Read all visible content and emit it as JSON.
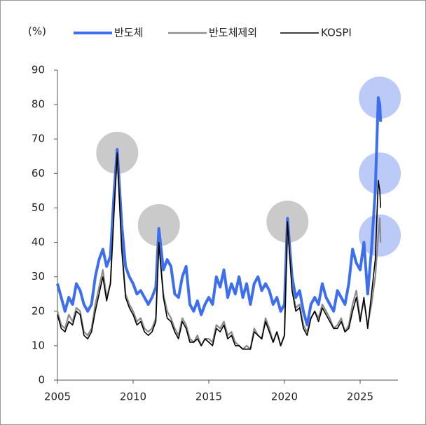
{
  "chart_data": {
    "type": "line",
    "y_unit_label": "(%)",
    "xlim": [
      2005,
      2027.5
    ],
    "xticks": [
      2005,
      2010,
      2015,
      2020,
      2025
    ],
    "ylim": [
      0,
      90
    ],
    "yticks": [
      0,
      10,
      20,
      30,
      40,
      50,
      60,
      70,
      80,
      90
    ],
    "legend": "top",
    "x": [
      2005.0,
      2005.25,
      2005.5,
      2005.75,
      2006.0,
      2006.25,
      2006.5,
      2006.75,
      2007.0,
      2007.25,
      2007.5,
      2007.75,
      2008.0,
      2008.25,
      2008.5,
      2008.75,
      2008.95,
      2009.25,
      2009.5,
      2009.75,
      2010.0,
      2010.25,
      2010.5,
      2010.75,
      2011.0,
      2011.25,
      2011.5,
      2011.7,
      2012.0,
      2012.25,
      2012.5,
      2012.75,
      2013.0,
      2013.25,
      2013.5,
      2013.75,
      2014.0,
      2014.25,
      2014.5,
      2014.75,
      2015.0,
      2015.25,
      2015.5,
      2015.75,
      2016.0,
      2016.25,
      2016.5,
      2016.75,
      2017.0,
      2017.25,
      2017.5,
      2017.75,
      2018.0,
      2018.25,
      2018.5,
      2018.75,
      2019.0,
      2019.25,
      2019.5,
      2019.75,
      2020.0,
      2020.2,
      2020.5,
      2020.75,
      2021.0,
      2021.25,
      2021.5,
      2021.75,
      2022.0,
      2022.25,
      2022.5,
      2022.75,
      2023.0,
      2023.25,
      2023.5,
      2023.75,
      2024.0,
      2024.25,
      2024.5,
      2024.75,
      2025.0,
      2025.25,
      2025.5,
      2025.75,
      2026.0,
      2026.2,
      2026.3,
      2026.35
    ],
    "series": [
      {
        "name": "반도체",
        "color": "#3d6ef0",
        "width": 4,
        "values": [
          28,
          24,
          20,
          24,
          22,
          28,
          26,
          22,
          20,
          22,
          30,
          35,
          38,
          33,
          36,
          55,
          67,
          45,
          33,
          30,
          28,
          25,
          26,
          24,
          22,
          24,
          27,
          44,
          32,
          35,
          33,
          25,
          24,
          30,
          33,
          22,
          20,
          23,
          19,
          22,
          24,
          22,
          30,
          27,
          32,
          24,
          28,
          25,
          30,
          24,
          28,
          22,
          28,
          30,
          26,
          28,
          26,
          22,
          24,
          20,
          22,
          47,
          30,
          24,
          26,
          20,
          16,
          22,
          24,
          22,
          28,
          24,
          22,
          20,
          26,
          24,
          22,
          28,
          38,
          34,
          32,
          40,
          25,
          38,
          55,
          82,
          80,
          75
        ]
      },
      {
        "name": "반도체제외",
        "color": "#8a8a8a",
        "width": 2.2,
        "values": [
          20,
          16,
          15,
          19,
          17,
          21,
          20,
          14,
          13,
          15,
          22,
          27,
          32,
          24,
          28,
          50,
          66,
          38,
          25,
          22,
          20,
          17,
          18,
          15,
          14,
          15,
          18,
          40,
          25,
          20,
          18,
          15,
          13,
          18,
          16,
          12,
          11,
          13,
          10,
          12,
          12,
          11,
          16,
          15,
          17,
          13,
          14,
          11,
          10,
          9,
          10,
          9,
          15,
          13,
          12,
          18,
          15,
          11,
          14,
          10,
          13,
          46,
          27,
          21,
          22,
          16,
          14,
          18,
          20,
          18,
          22,
          20,
          18,
          15,
          16,
          18,
          14,
          16,
          22,
          26,
          18,
          23,
          16,
          22,
          30,
          42,
          47,
          40
        ]
      },
      {
        "name": "KOSPI",
        "color": "#000000",
        "width": 1.6,
        "values": [
          19,
          15,
          14,
          17,
          16,
          20,
          19,
          13,
          12,
          14,
          20,
          25,
          30,
          23,
          28,
          50,
          66,
          38,
          24,
          21,
          19,
          16,
          17,
          14,
          13,
          14,
          17,
          40,
          24,
          18,
          17,
          14,
          12,
          17,
          15,
          11,
          11,
          12,
          10,
          12,
          11,
          10,
          15,
          14,
          16,
          12,
          13,
          10,
          10,
          9,
          9,
          9,
          14,
          13,
          12,
          17,
          14,
          11,
          14,
          10,
          13,
          46,
          26,
          20,
          21,
          15,
          13,
          18,
          20,
          17,
          21,
          19,
          17,
          15,
          15,
          17,
          14,
          15,
          20,
          24,
          17,
          24,
          15,
          25,
          35,
          58,
          55,
          50
        ]
      }
    ],
    "highlights": [
      {
        "x": 2008.95,
        "y": 66,
        "color": "#a6a6a6"
      },
      {
        "x": 2011.7,
        "y": 45,
        "color": "#a6a6a6"
      },
      {
        "x": 2020.2,
        "y": 46,
        "color": "#a6a6a6"
      },
      {
        "x": 2026.3,
        "y": 82,
        "color": "#8ea6f2"
      },
      {
        "x": 2026.3,
        "y": 60,
        "color": "#8ea6f2"
      },
      {
        "x": 2026.3,
        "y": 42,
        "color": "#8ea6f2"
      }
    ]
  }
}
